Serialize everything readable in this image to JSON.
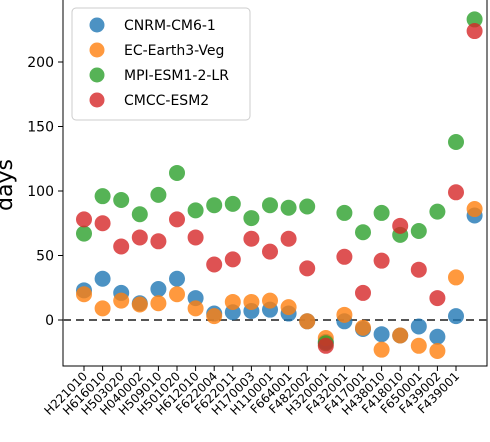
{
  "chart_data": {
    "type": "scatter",
    "ylabel": "days",
    "ylim": [
      -35,
      245
    ],
    "yticks": [
      0,
      50,
      100,
      150,
      200
    ],
    "categories": [
      "H221010",
      "H616010",
      "H503020",
      "H040002",
      "H509010",
      "H501020",
      "H612010",
      "F622004",
      "F622011",
      "H170003",
      "H110001",
      "F664001",
      "F482002",
      "H320001",
      "F432001",
      "F417001",
      "H438010",
      "F418010",
      "F650001",
      "F439002",
      "F439001"
    ],
    "reference_line": 0,
    "legend_position": "top-left",
    "series": [
      {
        "name": "CNRM-CM6-1",
        "color": "#1f77b4",
        "values": [
          23,
          32,
          21,
          13,
          24,
          32,
          17,
          5,
          6,
          7,
          8,
          5,
          -1,
          -17,
          -1,
          -7,
          -11,
          -12,
          -5,
          -13,
          3
        ]
      },
      {
        "name": "EC-Earth3-Veg",
        "color": "#ff7f0e",
        "values": [
          20,
          9,
          15,
          12,
          13,
          20,
          9,
          3,
          14,
          14,
          15,
          10,
          -1,
          -14,
          4,
          -6,
          -23,
          -12,
          -20,
          -24,
          33
        ]
      },
      {
        "name": "MPI-ESM1-2-LR",
        "color": "#2ca02c",
        "values": [
          67,
          96,
          93,
          82,
          97,
          114,
          85,
          89,
          90,
          79,
          89,
          87,
          88,
          -18,
          83,
          68,
          83,
          66,
          69,
          84,
          138
        ]
      },
      {
        "name": "CMCC-ESM2",
        "color": "#d62728",
        "values": [
          78,
          75,
          57,
          64,
          61,
          78,
          64,
          43,
          47,
          63,
          53,
          63,
          40,
          -20,
          49,
          21,
          46,
          73,
          39,
          17,
          99
        ]
      }
    ],
    "extra_points": {
      "x_index": 21,
      "CNRM-CM6-1": 81,
      "EC-Earth3-Veg": 86,
      "MPI-ESM1-2-LR": 233,
      "CMCC-ESM2": 224
    },
    "xlabels": [
      "H221010",
      "H616010",
      "H503020",
      "H040002",
      "H509010",
      "H501020",
      "H612010",
      "F622004",
      "F622011",
      "H170003",
      "H110001",
      "F664001",
      "F482002",
      "H320001",
      "F432001",
      "F417001",
      "H438010",
      "F418010",
      "F650001",
      "F439002",
      "F439001"
    ]
  }
}
